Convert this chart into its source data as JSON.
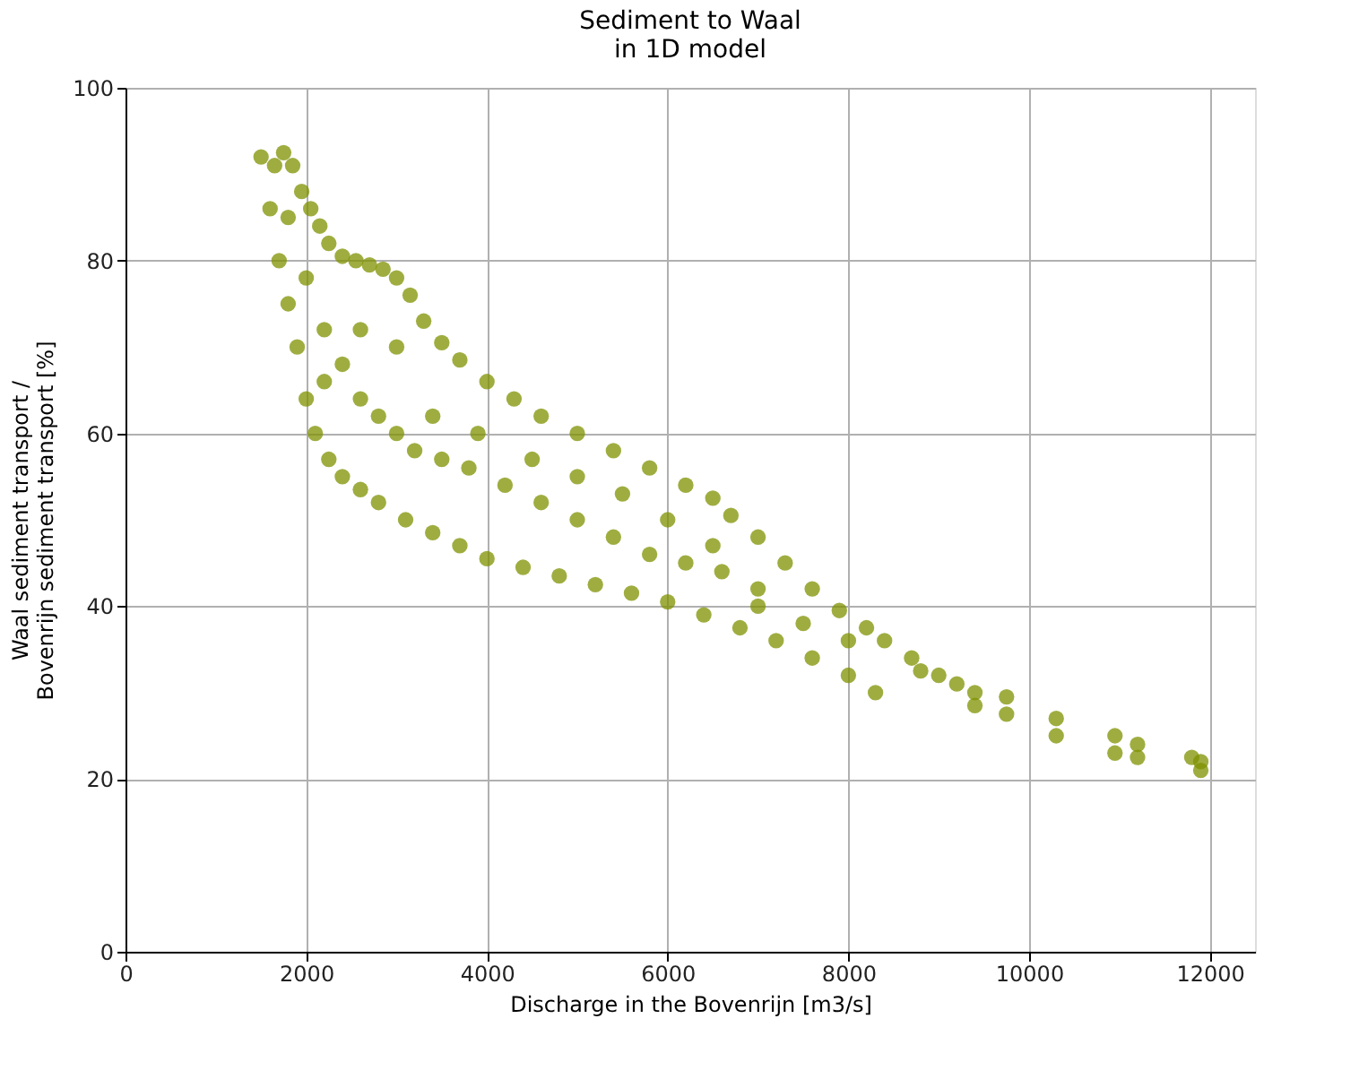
{
  "chart_data": {
    "type": "scatter",
    "title": [
      "Sediment to Waal",
      "in 1D model"
    ],
    "xlabel": "Discharge in the Bovenrijn [m3/s]",
    "ylabel": [
      "Waal sediment transport /",
      "Bovenrijn sediment transport [%]"
    ],
    "xlim": [
      0,
      12500
    ],
    "xticks": [
      0,
      2000,
      4000,
      6000,
      8000,
      10000,
      12000
    ],
    "ylim": [
      0,
      100
    ],
    "yticks": [
      0,
      20,
      40,
      60,
      80,
      100
    ],
    "grid": true,
    "marker": "circle",
    "series": [
      {
        "color": "#7f9100",
        "x": [
          1500,
          1650,
          1750,
          1850,
          1950,
          2050,
          2150,
          2250,
          2400,
          2550,
          2700,
          2850,
          3000,
          3150,
          3300,
          3500,
          3700,
          4000,
          4300,
          4600,
          5000,
          5400,
          5800,
          6200,
          6500,
          6700,
          7000,
          7300,
          7600,
          7900,
          8200,
          8400,
          1600,
          1700,
          1800,
          1900,
          2000,
          2100,
          2250,
          2400,
          2600,
          2800,
          3100,
          3400,
          3700,
          4000,
          4400,
          4800,
          5200,
          5600,
          6000,
          6400,
          6800,
          7200,
          7600,
          8000,
          8300,
          1800,
          2000,
          2200,
          2400,
          2600,
          2800,
          3000,
          3200,
          3500,
          3800,
          4200,
          4600,
          5000,
          5400,
          5800,
          6200,
          6600,
          7000,
          2200,
          2600,
          3000,
          3400,
          3900,
          4500,
          5000,
          5500,
          6000,
          6500,
          7000,
          7500,
          8000,
          8700,
          8800,
          9000,
          9200,
          9400,
          9400,
          9750,
          9750,
          10300,
          10300,
          10950,
          10950,
          11200,
          11200,
          11800,
          11900,
          11900
        ],
        "values": [
          92,
          91,
          92.5,
          91,
          88,
          86,
          84,
          82,
          80.5,
          80,
          79.5,
          79,
          78,
          76,
          73,
          70.5,
          68.5,
          66,
          64,
          62,
          60,
          58,
          56,
          54,
          52.5,
          50.5,
          48,
          45,
          42,
          39.5,
          37.5,
          36,
          86,
          80,
          75,
          70,
          64,
          60,
          57,
          55,
          53.5,
          52,
          50,
          48.5,
          47,
          45.5,
          44.5,
          43.5,
          42.5,
          41.5,
          40.5,
          39,
          37.5,
          36,
          34,
          32,
          30,
          85,
          78,
          72,
          68,
          64,
          62,
          60,
          58,
          57,
          56,
          54,
          52,
          50,
          48,
          46,
          45,
          44,
          42,
          66,
          72,
          70,
          62,
          60,
          57,
          55,
          53,
          50,
          47,
          40,
          38,
          36,
          34,
          32.5,
          32,
          31,
          30,
          28.5,
          29.5,
          27.5,
          27,
          25,
          25,
          23,
          24,
          22.5,
          22.5,
          22,
          21
        ]
      }
    ]
  }
}
